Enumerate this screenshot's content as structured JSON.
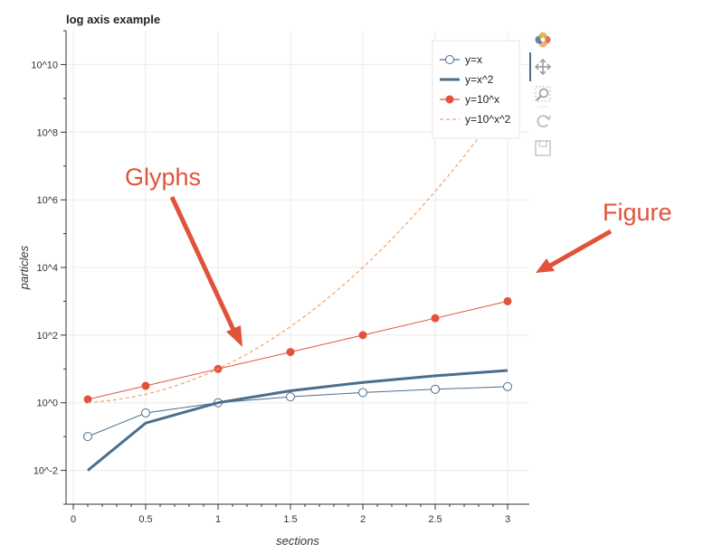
{
  "chart_data": {
    "type": "line",
    "title": "log axis example",
    "xlabel": "sections",
    "ylabel": "particles",
    "x_scale": "linear",
    "y_scale": "log",
    "xlim": [
      -0.05,
      3.15
    ],
    "ylim": [
      0.001,
      100000000000
    ],
    "x_ticks": [
      0,
      0.5,
      1,
      1.5,
      2,
      2.5,
      3
    ],
    "x_tick_labels": [
      "0",
      "0.5",
      "1",
      "1.5",
      "2",
      "2.5",
      "3"
    ],
    "y_ticks": [
      0.01,
      1,
      100,
      10000,
      1000000,
      100000000,
      10000000000
    ],
    "y_tick_labels": [
      "10^-2",
      "10^0",
      "10^2",
      "10^4",
      "10^6",
      "10^8",
      "10^10"
    ],
    "grid": true,
    "legend_position": "top-right",
    "series": [
      {
        "name": "y=x",
        "style": "line-open-circle",
        "color": "#4a6e8e",
        "x": [
          0.1,
          0.5,
          1,
          1.5,
          2,
          2.5,
          3
        ],
        "y": [
          0.1,
          0.5,
          1,
          1.5,
          2,
          2.5,
          3
        ]
      },
      {
        "name": "y=x^2",
        "style": "thick-line",
        "color": "#4a6e8e",
        "x": [
          0.1,
          0.5,
          1,
          1.5,
          2,
          2.5,
          3
        ],
        "y": [
          0.01,
          0.25,
          1,
          2.25,
          4,
          6.25,
          9
        ]
      },
      {
        "name": "y=10^x",
        "style": "line-filled-circle",
        "color": "#e0533a",
        "x": [
          0.1,
          0.5,
          1,
          1.5,
          2,
          2.5,
          3
        ],
        "y": [
          1.26,
          3.16,
          10,
          31.6,
          100,
          316,
          1000
        ]
      },
      {
        "name": "y=10^x^2",
        "style": "dashed-line",
        "color": "#f5a06a",
        "x": [
          0.1,
          0.2,
          0.3,
          0.4,
          0.5,
          0.6,
          0.7,
          0.8,
          0.9,
          1.0,
          1.1,
          1.2,
          1.3,
          1.4,
          1.5,
          1.6,
          1.7,
          1.8,
          1.9,
          2.0,
          2.1,
          2.2,
          2.3,
          2.4,
          2.5,
          2.6,
          2.7,
          2.8,
          2.9,
          3.0
        ]
      }
    ],
    "annotations": [
      {
        "text": "Glyphs",
        "color": "#e0533a"
      },
      {
        "text": "Figure",
        "color": "#e0533a"
      }
    ]
  },
  "toolbar": {
    "items": [
      {
        "name": "bokeh-logo-icon"
      },
      {
        "name": "pan-icon"
      },
      {
        "name": "zoom-icon"
      },
      {
        "name": "reset-icon"
      },
      {
        "name": "save-icon"
      }
    ]
  }
}
